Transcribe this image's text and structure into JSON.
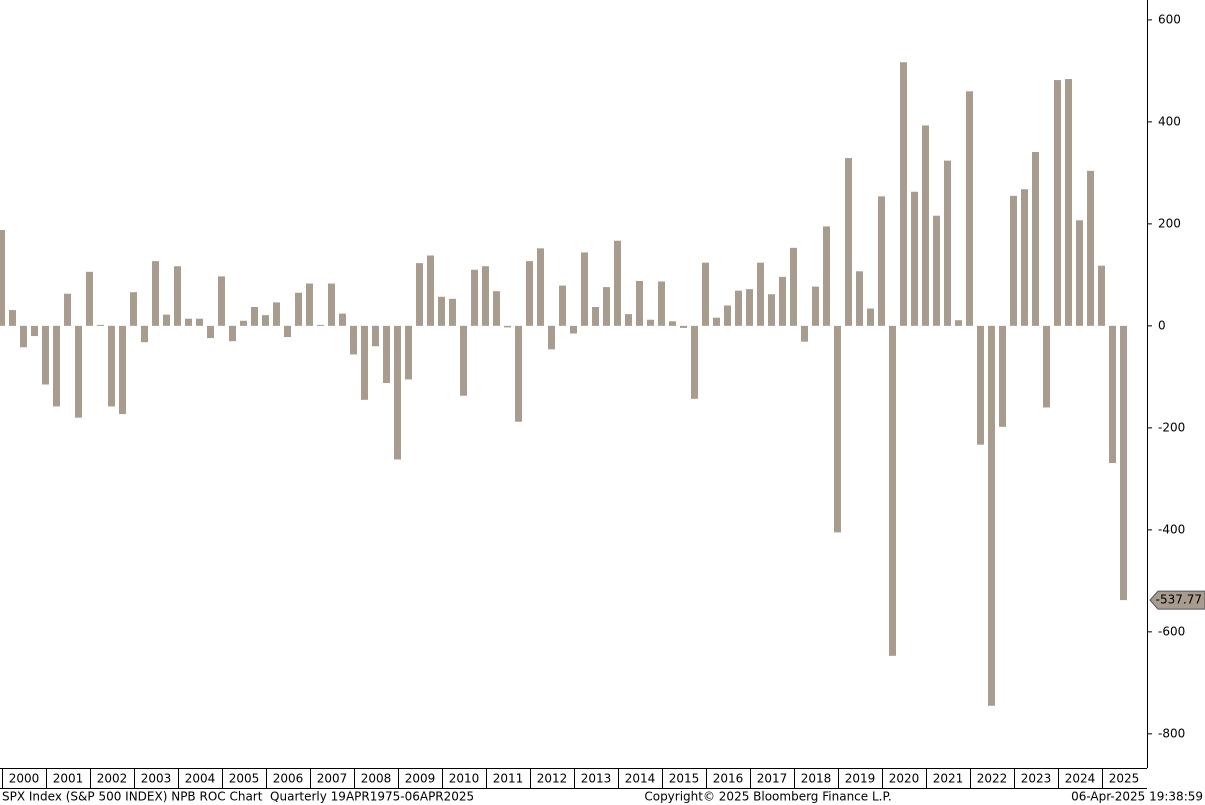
{
  "chart_data": {
    "type": "bar",
    "year_labels": [
      "2000",
      "2001",
      "2002",
      "2003",
      "2004",
      "2005",
      "2006",
      "2007",
      "2008",
      "2009",
      "2010",
      "2011",
      "2012",
      "2013",
      "2014",
      "2015",
      "2016",
      "2017",
      "2018",
      "2019",
      "2020",
      "2021",
      "2022",
      "2023",
      "2024",
      "2025"
    ],
    "values": [
      188,
      31,
      -42,
      -20,
      -115,
      -158,
      63,
      -180,
      106,
      2,
      -158,
      -173,
      66,
      -32,
      127,
      22,
      117,
      14,
      14,
      -24,
      97,
      -30,
      10,
      37,
      21,
      46,
      -22,
      65,
      83,
      2,
      83,
      24,
      -56,
      -145,
      -40,
      -112,
      -262,
      -105,
      123,
      138,
      57,
      53,
      -137,
      110,
      117,
      68,
      -3,
      -188,
      127,
      152,
      -46,
      79,
      -15,
      144,
      37,
      76,
      167,
      23,
      88,
      12,
      87,
      9,
      -4,
      -143,
      124,
      16,
      40,
      69,
      72,
      124,
      62,
      96,
      153,
      -31,
      77,
      195,
      -405,
      329,
      107,
      34,
      254,
      -647,
      517,
      263,
      393,
      216,
      324,
      11,
      460,
      -233,
      -745,
      -198,
      255,
      268,
      341,
      -160,
      482,
      484,
      207,
      304,
      118,
      -269,
      -537.77
    ],
    "color": "#a89c8e",
    "ylim": [
      -867,
      639
    ],
    "yticks": [
      600,
      400,
      200,
      0,
      -200,
      -400,
      -600,
      -800
    ],
    "footer_left": "SPX Index (S&P 500 INDEX) NPB ROC Chart  Quarterly 19APR1975-06APR2025",
    "footer_center": "Copyright© 2025 Bloomberg Finance L.P.",
    "footer_right": "06-Apr-2025 19:38:59"
  }
}
